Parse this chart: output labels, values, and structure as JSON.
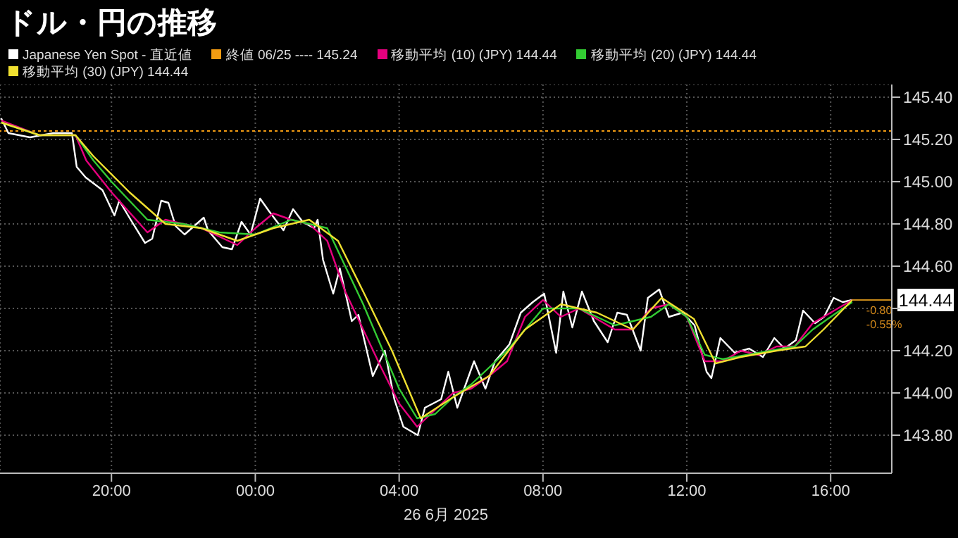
{
  "chart_data": {
    "type": "line",
    "title": "ドル・円の推移",
    "xlabel": "26 6月 2025",
    "legend": "top left",
    "grid": true,
    "marker": "none",
    "line_style": "solid",
    "xlim": [
      "2025-06-25T16:54",
      "2025-06-26T17:42"
    ],
    "xticks": [
      {
        "value": "2025-06-25T20:00",
        "label": "20:00"
      },
      {
        "value": "2025-06-26T00:00",
        "label": "00:00"
      },
      {
        "value": "2025-06-26T04:00",
        "label": "04:00"
      },
      {
        "value": "2025-06-26T08:00",
        "label": "08:00"
      },
      {
        "value": "2025-06-26T12:00",
        "label": "12:00"
      },
      {
        "value": "2025-06-26T16:00",
        "label": "16:00"
      }
    ],
    "ylim": [
      143.62,
      145.46
    ],
    "yticks": [
      {
        "value": 143.8,
        "label": "143.80"
      },
      {
        "value": 144,
        "label": "144.00"
      },
      {
        "value": 144.2,
        "label": "144.20"
      },
      {
        "value": 144.4,
        "label": null
      },
      {
        "value": 144.6,
        "label": "144.60"
      },
      {
        "value": 144.8,
        "label": "144.80"
      },
      {
        "value": 145,
        "label": "145.00"
      },
      {
        "value": 145.2,
        "label": "145.20"
      },
      {
        "value": 145.4,
        "label": "145.40"
      }
    ],
    "ref_lines": [
      {
        "axis": "y",
        "value": 145.24,
        "label": "終値 06/25 ---- 145.24",
        "color": "#f39c12",
        "line_style": "dotted"
      }
    ],
    "annotations": [
      {
        "text": "144.44",
        "x": "2025-06-26T16:36",
        "y": 144.44
      },
      "-0.80",
      "-0.55%"
    ],
    "series": [
      {
        "name": "Japanese Yen Spot - 直近値",
        "color": "#ffffff",
        "x": [
          "2025-06-25T16:56",
          "2025-06-25T17:08",
          "2025-06-25T17:44",
          "2025-06-25T18:23",
          "2025-06-25T18:54",
          "2025-06-25T19:02",
          "2025-06-25T19:17",
          "2025-06-25T19:45",
          "2025-06-25T20:05",
          "2025-06-25T20:13",
          "2025-06-25T20:32",
          "2025-06-25T20:56",
          "2025-06-25T21:08",
          "2025-06-25T21:23",
          "2025-06-25T21:35",
          "2025-06-25T21:47",
          "2025-06-25T22:02",
          "2025-06-25T22:14",
          "2025-06-25T22:34",
          "2025-06-25T22:41",
          "2025-06-25T23:05",
          "2025-06-25T23:21",
          "2025-06-25T23:37",
          "2025-06-25T23:52",
          "2025-06-26T00:08",
          "2025-06-26T00:23",
          "2025-06-26T00:47",
          "2025-06-26T01:03",
          "2025-06-26T01:19",
          "2025-06-26T01:38",
          "2025-06-26T01:44",
          "2025-06-26T01:53",
          "2025-06-26T02:10",
          "2025-06-26T02:21",
          "2025-06-26T02:41",
          "2025-06-26T02:52",
          "2025-06-26T03:16",
          "2025-06-26T03:36",
          "2025-06-26T03:52",
          "2025-06-26T04:07",
          "2025-06-26T04:31",
          "2025-06-26T04:43",
          "2025-06-26T05:10",
          "2025-06-26T05:22",
          "2025-06-26T05:37",
          "2025-06-26T06:05",
          "2025-06-26T06:24",
          "2025-06-26T06:40",
          "2025-06-26T07:04",
          "2025-06-26T07:23",
          "2025-06-26T07:43",
          "2025-06-26T08:02",
          "2025-06-26T08:22",
          "2025-06-26T08:34",
          "2025-06-26T08:49",
          "2025-06-26T09:05",
          "2025-06-26T09:25",
          "2025-06-26T09:48",
          "2025-06-26T10:04",
          "2025-06-26T10:20",
          "2025-06-26T10:43",
          "2025-06-26T10:55",
          "2025-06-26T11:14",
          "2025-06-26T11:30",
          "2025-06-26T11:53",
          "2025-06-26T12:13",
          "2025-06-26T12:33",
          "2025-06-26T12:41",
          "2025-06-26T12:56",
          "2025-06-26T13:20",
          "2025-06-26T13:44",
          "2025-06-26T14:07",
          "2025-06-26T14:26",
          "2025-06-26T14:43",
          "2025-06-26T15:02",
          "2025-06-26T15:14",
          "2025-06-26T15:34",
          "2025-06-26T15:49",
          "2025-06-26T16:05",
          "2025-06-26T16:20",
          "2025-06-26T16:36"
        ],
        "values": [
          145.3,
          145.23,
          145.21,
          145.23,
          145.23,
          145.07,
          145.02,
          144.96,
          144.84,
          144.91,
          144.82,
          144.71,
          144.73,
          144.91,
          144.9,
          144.79,
          144.75,
          144.78,
          144.83,
          144.77,
          144.69,
          144.68,
          144.81,
          144.75,
          144.92,
          144.86,
          144.77,
          144.87,
          144.81,
          144.78,
          144.82,
          144.63,
          144.47,
          144.59,
          144.34,
          144.37,
          144.08,
          144.2,
          143.97,
          143.84,
          143.8,
          143.93,
          143.97,
          144.1,
          143.93,
          144.15,
          144.02,
          144.15,
          144.23,
          144.38,
          144.43,
          144.47,
          144.19,
          144.48,
          144.31,
          144.48,
          144.34,
          144.24,
          144.38,
          144.37,
          144.2,
          144.45,
          144.49,
          144.36,
          144.38,
          144.32,
          144.1,
          144.07,
          144.26,
          144.19,
          144.21,
          144.17,
          144.26,
          144.21,
          144.25,
          144.39,
          144.33,
          144.36,
          144.45,
          144.43,
          144.44
        ]
      },
      {
        "name": "移動平均 (10) (JPY) 144.44",
        "color": "#e6007e",
        "x": [
          "2025-06-25T16:56",
          "2025-06-25T18:00",
          "2025-06-25T19:00",
          "2025-06-25T19:18",
          "2025-06-25T20:00",
          "2025-06-25T21:00",
          "2025-06-25T21:30",
          "2025-06-25T22:00",
          "2025-06-25T22:30",
          "2025-06-25T23:00",
          "2025-06-25T23:30",
          "2025-06-26T00:00",
          "2025-06-26T00:30",
          "2025-06-26T01:00",
          "2025-06-26T01:30",
          "2025-06-26T02:00",
          "2025-06-26T02:30",
          "2025-06-26T03:00",
          "2025-06-26T03:30",
          "2025-06-26T04:00",
          "2025-06-26T04:30",
          "2025-06-26T05:00",
          "2025-06-26T05:30",
          "2025-06-26T06:00",
          "2025-06-26T06:30",
          "2025-06-26T07:00",
          "2025-06-26T07:30",
          "2025-06-26T08:00",
          "2025-06-26T08:30",
          "2025-06-26T09:00",
          "2025-06-26T09:30",
          "2025-06-26T10:00",
          "2025-06-26T10:30",
          "2025-06-26T11:00",
          "2025-06-26T11:30",
          "2025-06-26T12:00",
          "2025-06-26T12:30",
          "2025-06-26T13:00",
          "2025-06-26T13:30",
          "2025-06-26T14:00",
          "2025-06-26T14:30",
          "2025-06-26T15:00",
          "2025-06-26T15:30",
          "2025-06-26T16:00",
          "2025-06-26T16:36"
        ],
        "values": [
          145.29,
          145.22,
          145.22,
          145.1,
          144.95,
          144.76,
          144.82,
          144.8,
          144.78,
          144.74,
          144.7,
          144.78,
          144.85,
          144.82,
          144.8,
          144.72,
          144.48,
          144.3,
          144.12,
          143.95,
          143.84,
          143.92,
          144.0,
          144.02,
          144.08,
          144.15,
          144.36,
          144.44,
          144.36,
          144.4,
          144.35,
          144.3,
          144.3,
          144.4,
          144.42,
          144.36,
          144.15,
          144.15,
          144.2,
          144.18,
          144.22,
          144.22,
          144.33,
          144.38,
          144.44
        ]
      },
      {
        "name": "移動平均 (20) (JPY) 144.44",
        "color": "#33cc33",
        "x": [
          "2025-06-25T16:56",
          "2025-06-25T18:00",
          "2025-06-25T19:00",
          "2025-06-25T19:30",
          "2025-06-25T20:00",
          "2025-06-25T21:00",
          "2025-06-25T22:00",
          "2025-06-25T23:00",
          "2025-06-26T00:00",
          "2025-06-26T01:00",
          "2025-06-26T02:00",
          "2025-06-26T02:30",
          "2025-06-26T03:00",
          "2025-06-26T03:30",
          "2025-06-26T04:00",
          "2025-06-26T04:30",
          "2025-06-26T05:00",
          "2025-06-26T05:30",
          "2025-06-26T06:00",
          "2025-06-26T07:00",
          "2025-06-26T08:00",
          "2025-06-26T09:00",
          "2025-06-26T10:00",
          "2025-06-26T11:00",
          "2025-06-26T11:30",
          "2025-06-26T12:00",
          "2025-06-26T12:30",
          "2025-06-26T13:00",
          "2025-06-26T14:00",
          "2025-06-26T15:00",
          "2025-06-26T15:30",
          "2025-06-26T16:00",
          "2025-06-26T16:36"
        ],
        "values": [
          145.28,
          145.22,
          145.22,
          145.1,
          145.0,
          144.82,
          144.8,
          144.76,
          144.75,
          144.82,
          144.78,
          144.6,
          144.42,
          144.22,
          144.02,
          143.88,
          143.9,
          143.98,
          144.04,
          144.2,
          144.4,
          144.4,
          144.32,
          144.36,
          144.42,
          144.36,
          144.18,
          144.16,
          144.19,
          144.22,
          144.3,
          144.36,
          144.43
        ]
      },
      {
        "name": "移動平均 (30) (JPY) 144.44",
        "color": "#f0e030",
        "x": [
          "2025-06-25T16:56",
          "2025-06-25T18:00",
          "2025-06-25T19:00",
          "2025-06-25T19:30",
          "2025-06-25T20:30",
          "2025-06-25T21:30",
          "2025-06-25T22:30",
          "2025-06-25T23:30",
          "2025-06-26T00:30",
          "2025-06-26T01:30",
          "2025-06-26T02:18",
          "2025-06-26T03:00",
          "2025-06-26T03:48",
          "2025-06-26T04:36",
          "2025-06-26T05:30",
          "2025-06-26T06:30",
          "2025-06-26T07:30",
          "2025-06-26T08:30",
          "2025-06-26T09:30",
          "2025-06-26T10:30",
          "2025-06-26T11:18",
          "2025-06-26T12:12",
          "2025-06-26T12:48",
          "2025-06-26T13:30",
          "2025-06-26T14:30",
          "2025-06-26T15:18",
          "2025-06-26T15:48",
          "2025-06-26T16:36"
        ],
        "values": [
          145.28,
          145.22,
          145.22,
          145.12,
          144.95,
          144.8,
          144.78,
          144.72,
          144.78,
          144.82,
          144.72,
          144.48,
          144.2,
          143.88,
          143.98,
          144.08,
          144.3,
          144.42,
          144.38,
          144.3,
          144.45,
          144.35,
          144.14,
          144.17,
          144.2,
          144.22,
          144.3,
          144.44
        ]
      }
    ]
  }
}
